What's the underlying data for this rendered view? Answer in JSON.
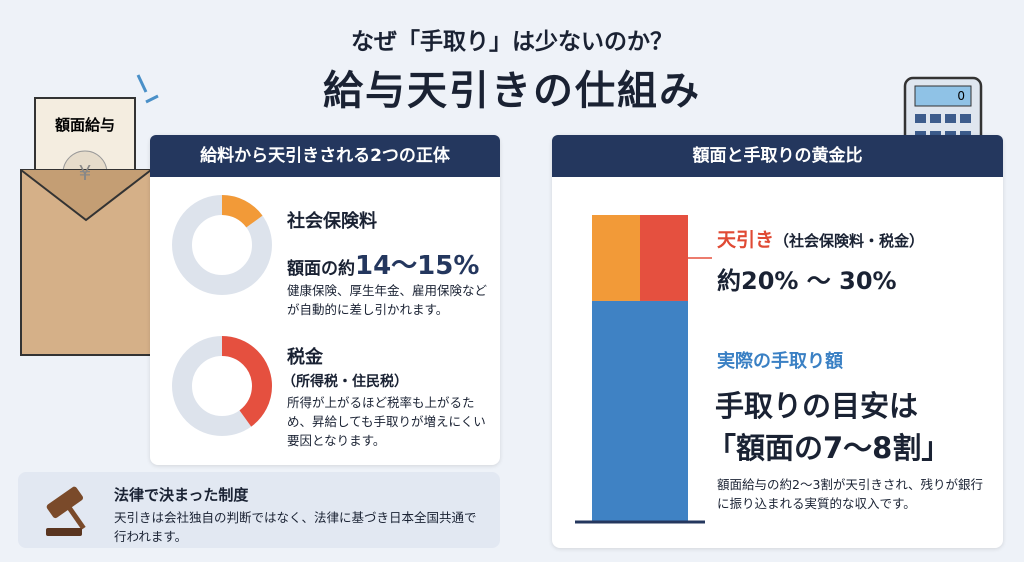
{
  "header": {
    "subtitle": "なぜ「手取り」は少ないのか？",
    "title": "給与天引きの仕組み"
  },
  "envelope": {
    "label": "額面給与",
    "symbol": "¥"
  },
  "calculator_display": "0",
  "left_panel": {
    "heading": "給料から天引きされる2つの正体",
    "items": [
      {
        "name": "社会保険料",
        "amount_prefix": "額面の約",
        "amount": "14〜15%",
        "description": "健康保険、厚生年金、雇用保険などが自動的に差し引かれます。",
        "donut_share": 15
      },
      {
        "name": "税金",
        "sub": "（所得税・住民税）",
        "description": "所得が上がるほど税率も上がるため、昇給しても手取りが増えにくい要因となります。",
        "donut_share": 40
      }
    ]
  },
  "note": {
    "title": "法律で決まった制度",
    "text": "天引きは会社独自の判断ではなく、法律に基づき日本全国共通で行われます。"
  },
  "right_panel": {
    "heading": "額面と手取りの黄金比",
    "deduction": {
      "label": "天引き",
      "detail": "（社会保険料・税金）",
      "range": "約20% 〜 30%"
    },
    "takehome": {
      "label": "実際の手取り額",
      "headline": [
        "手取りの目安は",
        "「額面の7〜8割」"
      ],
      "description": "額面給与の約2〜3割が天引きされ、残りが銀行に振り込まれる実質的な収入です。"
    },
    "bar": {
      "deduction_share": 28,
      "takehome_share": 72
    }
  }
}
